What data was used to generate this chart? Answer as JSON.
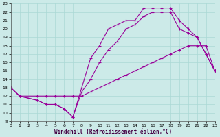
{
  "background_color": "#cceae8",
  "line_color": "#990099",
  "xlabel": "Windchill (Refroidissement éolien,°C)",
  "xlim": [
    0,
    23
  ],
  "ylim": [
    9,
    23
  ],
  "xticks": [
    0,
    1,
    2,
    3,
    4,
    5,
    6,
    7,
    8,
    9,
    10,
    11,
    12,
    13,
    14,
    15,
    16,
    17,
    18,
    19,
    20,
    21,
    22,
    23
  ],
  "yticks": [
    9,
    10,
    11,
    12,
    13,
    14,
    15,
    16,
    17,
    18,
    19,
    20,
    21,
    22,
    23
  ],
  "curve1_x": [
    0,
    1,
    3,
    4,
    5,
    6,
    7,
    8,
    9,
    10,
    11,
    12,
    13,
    14,
    15,
    16,
    17,
    18,
    19,
    20,
    21,
    22,
    23
  ],
  "curve1_y": [
    13,
    12,
    11.5,
    11,
    11,
    10.5,
    9.5,
    13,
    16.5,
    18,
    20,
    20.5,
    21,
    21,
    22.5,
    22.5,
    22.5,
    22.5,
    21,
    20,
    19,
    17,
    15
  ],
  "curve2_x": [
    0,
    1,
    3,
    4,
    5,
    6,
    7,
    8,
    9,
    10,
    11,
    12,
    13,
    14,
    15,
    16,
    17,
    18,
    19,
    20,
    21,
    22,
    23
  ],
  "curve2_y": [
    13,
    12,
    11.5,
    11,
    11,
    10.5,
    9.5,
    12.5,
    14,
    16,
    17.5,
    18.5,
    20,
    20.5,
    21.5,
    22,
    22,
    22,
    20,
    19.5,
    19,
    17,
    15
  ],
  "curve3_x": [
    0,
    1,
    3,
    4,
    5,
    6,
    7,
    8,
    9,
    10,
    11,
    12,
    13,
    14,
    15,
    16,
    17,
    18,
    19,
    20,
    21,
    22,
    23
  ],
  "curve3_y": [
    13,
    12,
    12,
    12,
    12,
    12,
    12,
    12,
    12.5,
    13,
    13.5,
    14,
    14.5,
    15,
    15.5,
    16,
    16.5,
    17,
    17.5,
    18,
    18,
    18,
    15
  ]
}
